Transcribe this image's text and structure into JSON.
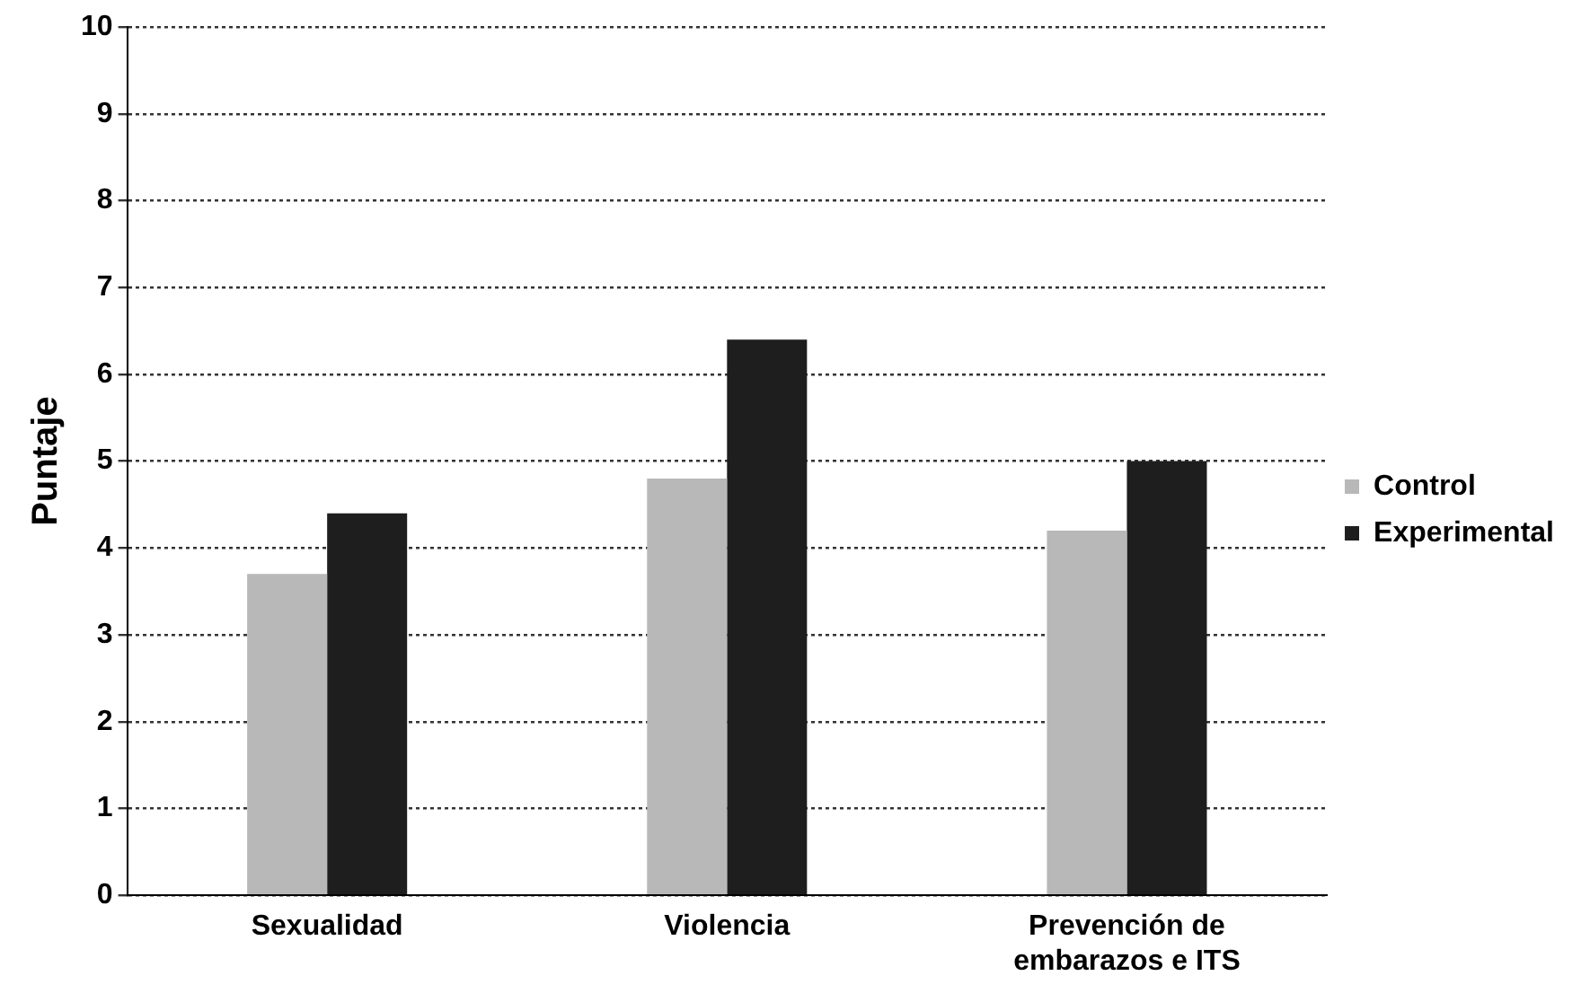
{
  "chart_data": {
    "type": "bar",
    "ylabel": "Puntaje",
    "categories": [
      "Sexualidad",
      "Violencia",
      "Prevención de embarazos e ITS"
    ],
    "series": [
      {
        "name": "Control",
        "color": "#b8b8b8",
        "values": [
          3.7,
          4.8,
          4.2
        ]
      },
      {
        "name": "Experimental",
        "color": "#1e1e1e",
        "values": [
          4.4,
          6.4,
          5.0
        ]
      }
    ],
    "ylim": [
      0,
      10
    ],
    "yticks": [
      0,
      1,
      2,
      3,
      4,
      5,
      6,
      7,
      8,
      9,
      10
    ],
    "grid": "y",
    "legend": "right"
  }
}
